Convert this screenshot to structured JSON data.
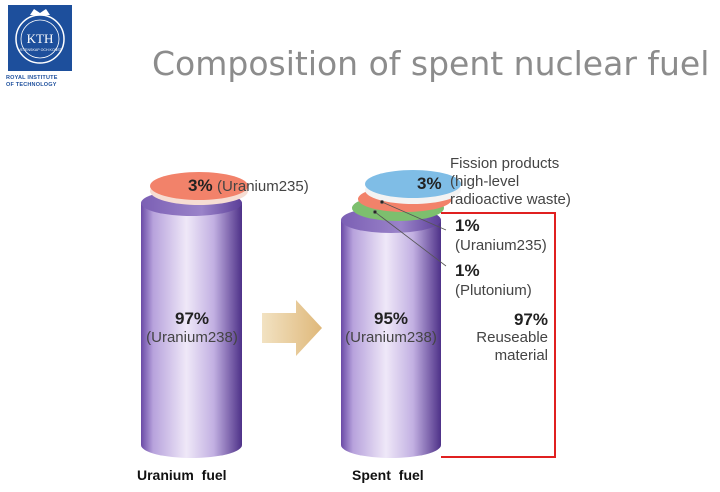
{
  "header": {
    "title": "Composition of spent nuclear fuel",
    "logo_text": "KTH",
    "logo_motto": "VETENSKAP OCH KONST",
    "institute_line1": "ROYAL INSTITUTE",
    "institute_line2": "OF TECHNOLOGY"
  },
  "colors": {
    "cylinder_light": "#e4d8f2",
    "cylinder_dark": "#5a3d96",
    "u235_disk": "#f2826a",
    "plutonium_disk": "#7dbf6e",
    "fission_disk": "#7fbde6",
    "arrow": "#e8c890",
    "bracket": "#e02020",
    "title": "#8c8c8c",
    "logo": "#1d4f9c"
  },
  "uranium_fuel": {
    "label": "Uranium fuel",
    "u238_percent": "97%",
    "u238_name": "(Uranium238)",
    "u235_percent": "3%",
    "u235_name": "(Uranium235)"
  },
  "spent_fuel": {
    "label": "Spent fuel",
    "u238_percent": "95%",
    "u238_name": "(Uranium238)",
    "fission_percent": "3%",
    "fission_line1": "Fission products",
    "fission_line2": "(high-level",
    "fission_line3": "radioactive waste)",
    "u235_percent": "1%",
    "u235_name": "(Uranium235)",
    "pu_percent": "1%",
    "pu_name": "(Plutonium)",
    "reusable_percent": "97%",
    "reusable_line1": "Reuseable",
    "reusable_line2": "material"
  }
}
